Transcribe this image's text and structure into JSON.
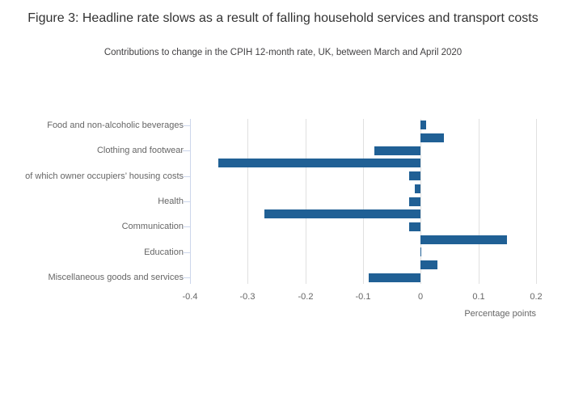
{
  "chart_data": {
    "type": "bar",
    "orientation": "horizontal",
    "title": "Figure 3: Headline rate slows as a result of falling household services and transport costs",
    "subtitle": "Contributions to change in the CPIH 12-month rate, UK, between March and April 2020",
    "xlabel": "Percentage points",
    "xlim": [
      -0.4,
      0.2
    ],
    "x_ticks": [
      -0.4,
      -0.3,
      -0.2,
      -0.1,
      0,
      0.1,
      0.2
    ],
    "x_tick_labels": [
      "-0.4",
      "-0.3",
      "-0.2",
      "-0.1",
      "0",
      "0.1",
      "0.2"
    ],
    "grid": "vertical",
    "legend": "none",
    "categories": [
      "Food and non-alcoholic beverages",
      "",
      "Clothing and footwear",
      "",
      "of which owner occupiers’ housing costs",
      "",
      "Health",
      "",
      "Communication",
      "",
      "Education",
      "",
      "Miscellaneous goods and services"
    ],
    "values": [
      0.01,
      0.04,
      -0.08,
      -0.35,
      -0.02,
      -0.01,
      -0.02,
      -0.27,
      -0.02,
      0.15,
      0.0,
      0.03,
      -0.09
    ]
  },
  "colors": {
    "bar": "#206095",
    "y_axis_line": "#ccd6eb",
    "gridline": "#e0e0e0",
    "title_text": "#333333",
    "subtitle_text": "#414042",
    "axis_text": "#666666"
  }
}
